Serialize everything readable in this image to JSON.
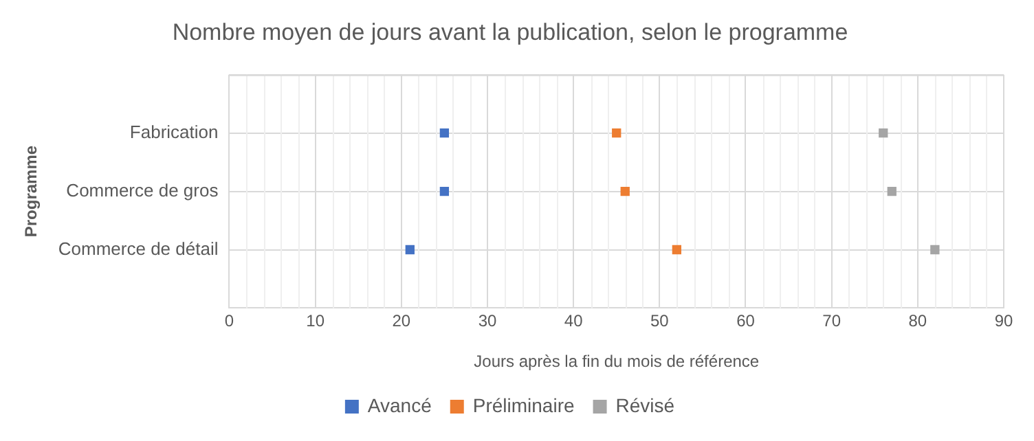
{
  "chart_data": {
    "type": "scatter",
    "title": "Nombre moyen de jours avant la publication, selon le programme",
    "xlabel": "Jours après la fin du mois de référence",
    "ylabel": "Programme",
    "orientation": "horizontal",
    "categories": [
      "Fabrication",
      "Commerce de gros",
      "Commerce de détail"
    ],
    "series": [
      {
        "name": "Avancé",
        "color": "#4472c4",
        "values": [
          25,
          25,
          21
        ]
      },
      {
        "name": "Préliminaire",
        "color": "#ed7d31",
        "values": [
          45,
          46,
          52
        ]
      },
      {
        "name": "Révisé",
        "color": "#a5a5a5",
        "values": [
          76,
          77,
          82
        ]
      }
    ],
    "xlim": [
      0,
      90
    ],
    "xticks": [
      0,
      10,
      20,
      30,
      40,
      50,
      60,
      70,
      80,
      90
    ],
    "grid": true,
    "legend": "bottom",
    "marker": "square"
  }
}
